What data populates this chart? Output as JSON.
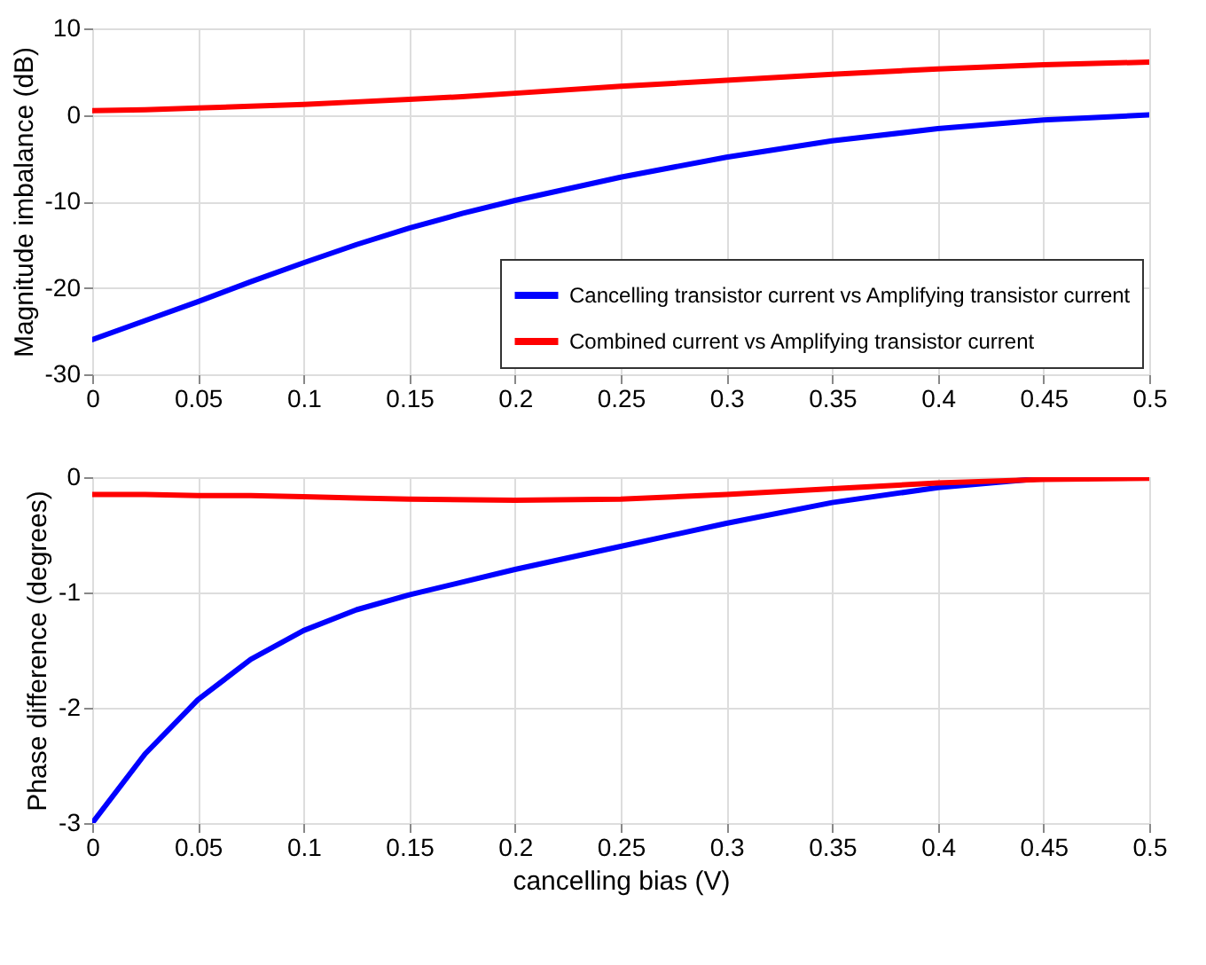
{
  "chart_data": [
    {
      "type": "line",
      "ylabel": "Magnitude imbalance (dB)",
      "x": [
        0,
        0.025,
        0.05,
        0.075,
        0.1,
        0.125,
        0.15,
        0.175,
        0.2,
        0.25,
        0.3,
        0.35,
        0.4,
        0.45,
        0.5
      ],
      "xlim": [
        0,
        0.5
      ],
      "xticks": [
        0,
        0.05,
        0.1,
        0.15,
        0.2,
        0.25,
        0.3,
        0.35,
        0.4,
        0.45,
        0.5
      ],
      "ylim": [
        -30,
        10
      ],
      "yticks": [
        -30,
        -20,
        -10,
        0,
        10
      ],
      "grid": true,
      "legend": "bottom right",
      "line_style": "solid",
      "marker": "none",
      "series": [
        {
          "name": "Cancelling transistor current vs Amplifying transistor current",
          "color": "#0000ff",
          "values": [
            -26,
            -23.8,
            -21.6,
            -19.3,
            -17.1,
            -15,
            -13.1,
            -11.4,
            -9.9,
            -7.2,
            -4.9,
            -3.0,
            -1.6,
            -0.6,
            0
          ]
        },
        {
          "name": "Combined current vs Amplifying transistor current",
          "color": "#ff0000",
          "values": [
            0.5,
            0.6,
            0.8,
            1.0,
            1.2,
            1.5,
            1.8,
            2.1,
            2.5,
            3.3,
            4.0,
            4.7,
            5.3,
            5.8,
            6.1
          ]
        }
      ]
    },
    {
      "type": "line",
      "xlabel": "cancelling bias (V)",
      "ylabel": "Phase difference (degrees)",
      "x": [
        0,
        0.025,
        0.05,
        0.075,
        0.1,
        0.125,
        0.15,
        0.2,
        0.25,
        0.3,
        0.35,
        0.4,
        0.45,
        0.5
      ],
      "xlim": [
        0,
        0.5
      ],
      "xticks": [
        0,
        0.05,
        0.1,
        0.15,
        0.2,
        0.25,
        0.3,
        0.35,
        0.4,
        0.45,
        0.5
      ],
      "ylim": [
        -3,
        0
      ],
      "yticks": [
        -3,
        -2,
        -1,
        0
      ],
      "grid": true,
      "legend": false,
      "line_style": "solid",
      "marker": "none",
      "series": [
        {
          "color": "#0000ff",
          "values": [
            -3,
            -2.4,
            -1.93,
            -1.58,
            -1.33,
            -1.15,
            -1.02,
            -0.8,
            -0.6,
            -0.4,
            -0.22,
            -0.09,
            -0.01,
            0
          ]
        },
        {
          "color": "#ff0000",
          "values": [
            -0.15,
            -0.15,
            -0.16,
            -0.16,
            -0.17,
            -0.18,
            -0.19,
            -0.2,
            -0.19,
            -0.15,
            -0.1,
            -0.05,
            -0.02,
            -0.01
          ]
        }
      ]
    }
  ]
}
